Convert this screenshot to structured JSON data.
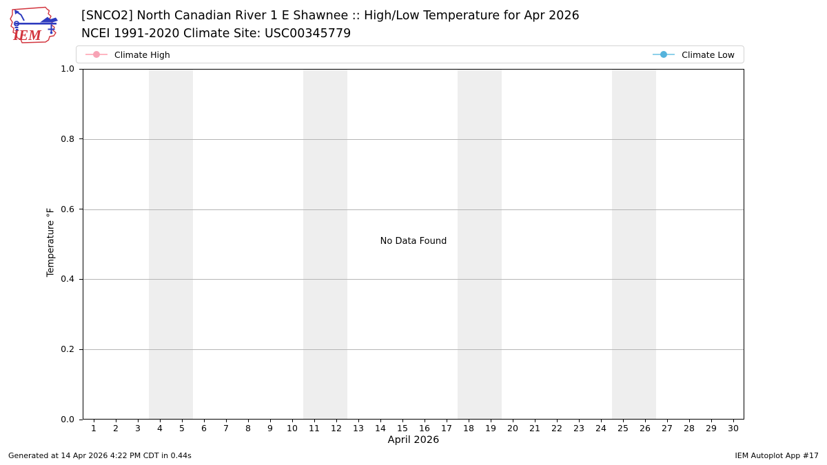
{
  "logo": {
    "text": "IEM",
    "outline_color": "#d2333c",
    "vane_color": "#2d3bbf"
  },
  "header": {
    "title_line1": "[SNCO2] North Canadian River 1 E Shawnee :: High/Low Temperature for Apr 2026",
    "title_line2": "NCEI 1991-2020 Climate Site: USC00345779"
  },
  "legend": {
    "entries": [
      {
        "label": "Climate High",
        "line_color": "#ffb6c1",
        "marker_color": "#f7a3b5"
      },
      {
        "label": "Climate Low",
        "line_color": "#8ed0ea",
        "marker_color": "#55b3dc"
      }
    ]
  },
  "chart_data": {
    "type": "line",
    "title": "[SNCO2] North Canadian River 1 E Shawnee :: High/Low Temperature for Apr 2026",
    "subtitle": "NCEI 1991-2020 Climate Site: USC00345779",
    "xlabel": "April 2026",
    "ylabel": "Temperature °F",
    "xlim": [
      0.5,
      30.5
    ],
    "ylim": [
      0.0,
      1.0
    ],
    "x_ticks": [
      1,
      2,
      3,
      4,
      5,
      6,
      7,
      8,
      9,
      10,
      11,
      12,
      13,
      14,
      15,
      16,
      17,
      18,
      19,
      20,
      21,
      22,
      23,
      24,
      25,
      26,
      27,
      28,
      29,
      30
    ],
    "y_ticks": [
      0.0,
      0.2,
      0.4,
      0.6,
      0.8,
      1.0
    ],
    "y_tick_labels": [
      "0.0",
      "0.2",
      "0.4",
      "0.6",
      "0.8",
      "1.0"
    ],
    "series": [
      {
        "name": "Climate High",
        "color": "#ffb6c1",
        "values": []
      },
      {
        "name": "Climate Low",
        "color": "#8ed0ea",
        "values": []
      }
    ],
    "no_data_message": "No Data Found",
    "weekend_bands": [
      [
        3.5,
        5.5
      ],
      [
        10.5,
        12.5
      ],
      [
        17.5,
        19.5
      ],
      [
        24.5,
        26.5
      ]
    ],
    "band_color": "#eeeeee",
    "grid": {
      "axis": "y",
      "color": "#b5b5b5"
    },
    "legend_position": "top"
  },
  "footer": {
    "left": "Generated at 14 Apr 2026 4:22 PM CDT in 0.44s",
    "right": "IEM Autoplot App #17"
  }
}
